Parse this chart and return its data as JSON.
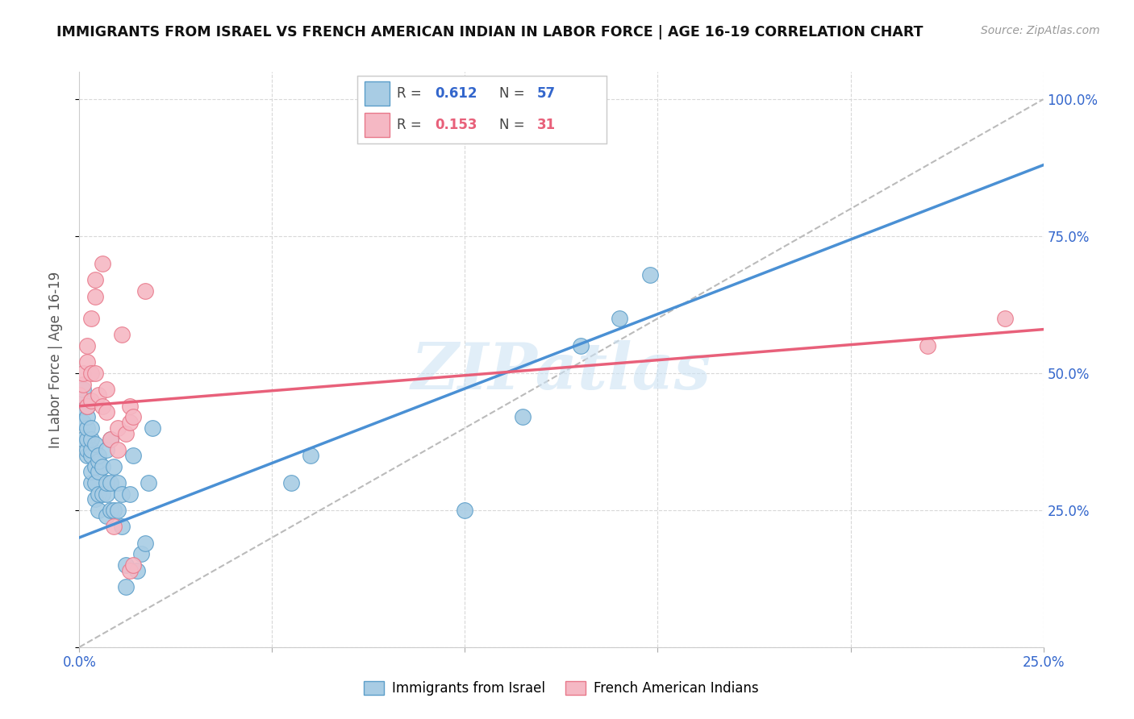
{
  "title": "IMMIGRANTS FROM ISRAEL VS FRENCH AMERICAN INDIAN IN LABOR FORCE | AGE 16-19 CORRELATION CHART",
  "source": "Source: ZipAtlas.com",
  "ylabel": "In Labor Force | Age 16-19",
  "xlim": [
    0.0,
    0.25
  ],
  "ylim": [
    0.0,
    1.05
  ],
  "xtick_vals": [
    0.0,
    0.05,
    0.1,
    0.15,
    0.2,
    0.25
  ],
  "xtick_labels": [
    "0.0%",
    "",
    "",
    "",
    "",
    "25.0%"
  ],
  "ytick_vals": [
    0.0,
    0.25,
    0.5,
    0.75,
    1.0
  ],
  "ytick_labels_left": [
    "",
    "",
    "",
    "",
    ""
  ],
  "ytick_labels_right": [
    "",
    "25.0%",
    "50.0%",
    "75.0%",
    "100.0%"
  ],
  "series1_color": "#a8cce4",
  "series1_edge_color": "#5b9ec9",
  "series2_color": "#f5b8c4",
  "series2_edge_color": "#e8788a",
  "line1_color": "#4a90d4",
  "line2_color": "#e8607a",
  "diag_color": "#bbbbbb",
  "R1": 0.612,
  "N1": 57,
  "R2": 0.153,
  "N2": 31,
  "watermark": "ZIPatlas",
  "israel_x": [
    0.0,
    0.001,
    0.001,
    0.001,
    0.001,
    0.002,
    0.002,
    0.002,
    0.002,
    0.002,
    0.002,
    0.003,
    0.003,
    0.003,
    0.003,
    0.003,
    0.003,
    0.004,
    0.004,
    0.004,
    0.004,
    0.005,
    0.005,
    0.005,
    0.005,
    0.005,
    0.006,
    0.006,
    0.007,
    0.007,
    0.007,
    0.007,
    0.008,
    0.008,
    0.008,
    0.009,
    0.009,
    0.01,
    0.01,
    0.011,
    0.011,
    0.012,
    0.012,
    0.013,
    0.014,
    0.015,
    0.016,
    0.017,
    0.018,
    0.019,
    0.055,
    0.06,
    0.1,
    0.115,
    0.13,
    0.14,
    0.148
  ],
  "israel_y": [
    0.44,
    0.38,
    0.41,
    0.45,
    0.47,
    0.35,
    0.36,
    0.38,
    0.4,
    0.42,
    0.44,
    0.3,
    0.32,
    0.35,
    0.36,
    0.38,
    0.4,
    0.27,
    0.3,
    0.33,
    0.37,
    0.25,
    0.28,
    0.32,
    0.34,
    0.35,
    0.28,
    0.33,
    0.24,
    0.28,
    0.3,
    0.36,
    0.25,
    0.3,
    0.38,
    0.25,
    0.33,
    0.25,
    0.3,
    0.22,
    0.28,
    0.11,
    0.15,
    0.28,
    0.35,
    0.14,
    0.17,
    0.19,
    0.3,
    0.4,
    0.3,
    0.35,
    0.25,
    0.42,
    0.55,
    0.6,
    0.68
  ],
  "french_x": [
    0.0,
    0.001,
    0.001,
    0.002,
    0.002,
    0.002,
    0.003,
    0.003,
    0.003,
    0.004,
    0.004,
    0.004,
    0.005,
    0.006,
    0.006,
    0.007,
    0.007,
    0.008,
    0.009,
    0.01,
    0.01,
    0.011,
    0.012,
    0.013,
    0.013,
    0.013,
    0.014,
    0.014,
    0.017,
    0.22,
    0.24
  ],
  "french_y": [
    0.46,
    0.48,
    0.5,
    0.44,
    0.52,
    0.55,
    0.5,
    0.6,
    0.45,
    0.5,
    0.64,
    0.67,
    0.46,
    0.44,
    0.7,
    0.43,
    0.47,
    0.38,
    0.22,
    0.4,
    0.36,
    0.57,
    0.39,
    0.41,
    0.44,
    0.14,
    0.15,
    0.42,
    0.65,
    0.55,
    0.6
  ],
  "line1_x": [
    0.0,
    0.25
  ],
  "line1_y": [
    0.2,
    0.88
  ],
  "line2_x": [
    0.0,
    0.25
  ],
  "line2_y": [
    0.44,
    0.58
  ]
}
